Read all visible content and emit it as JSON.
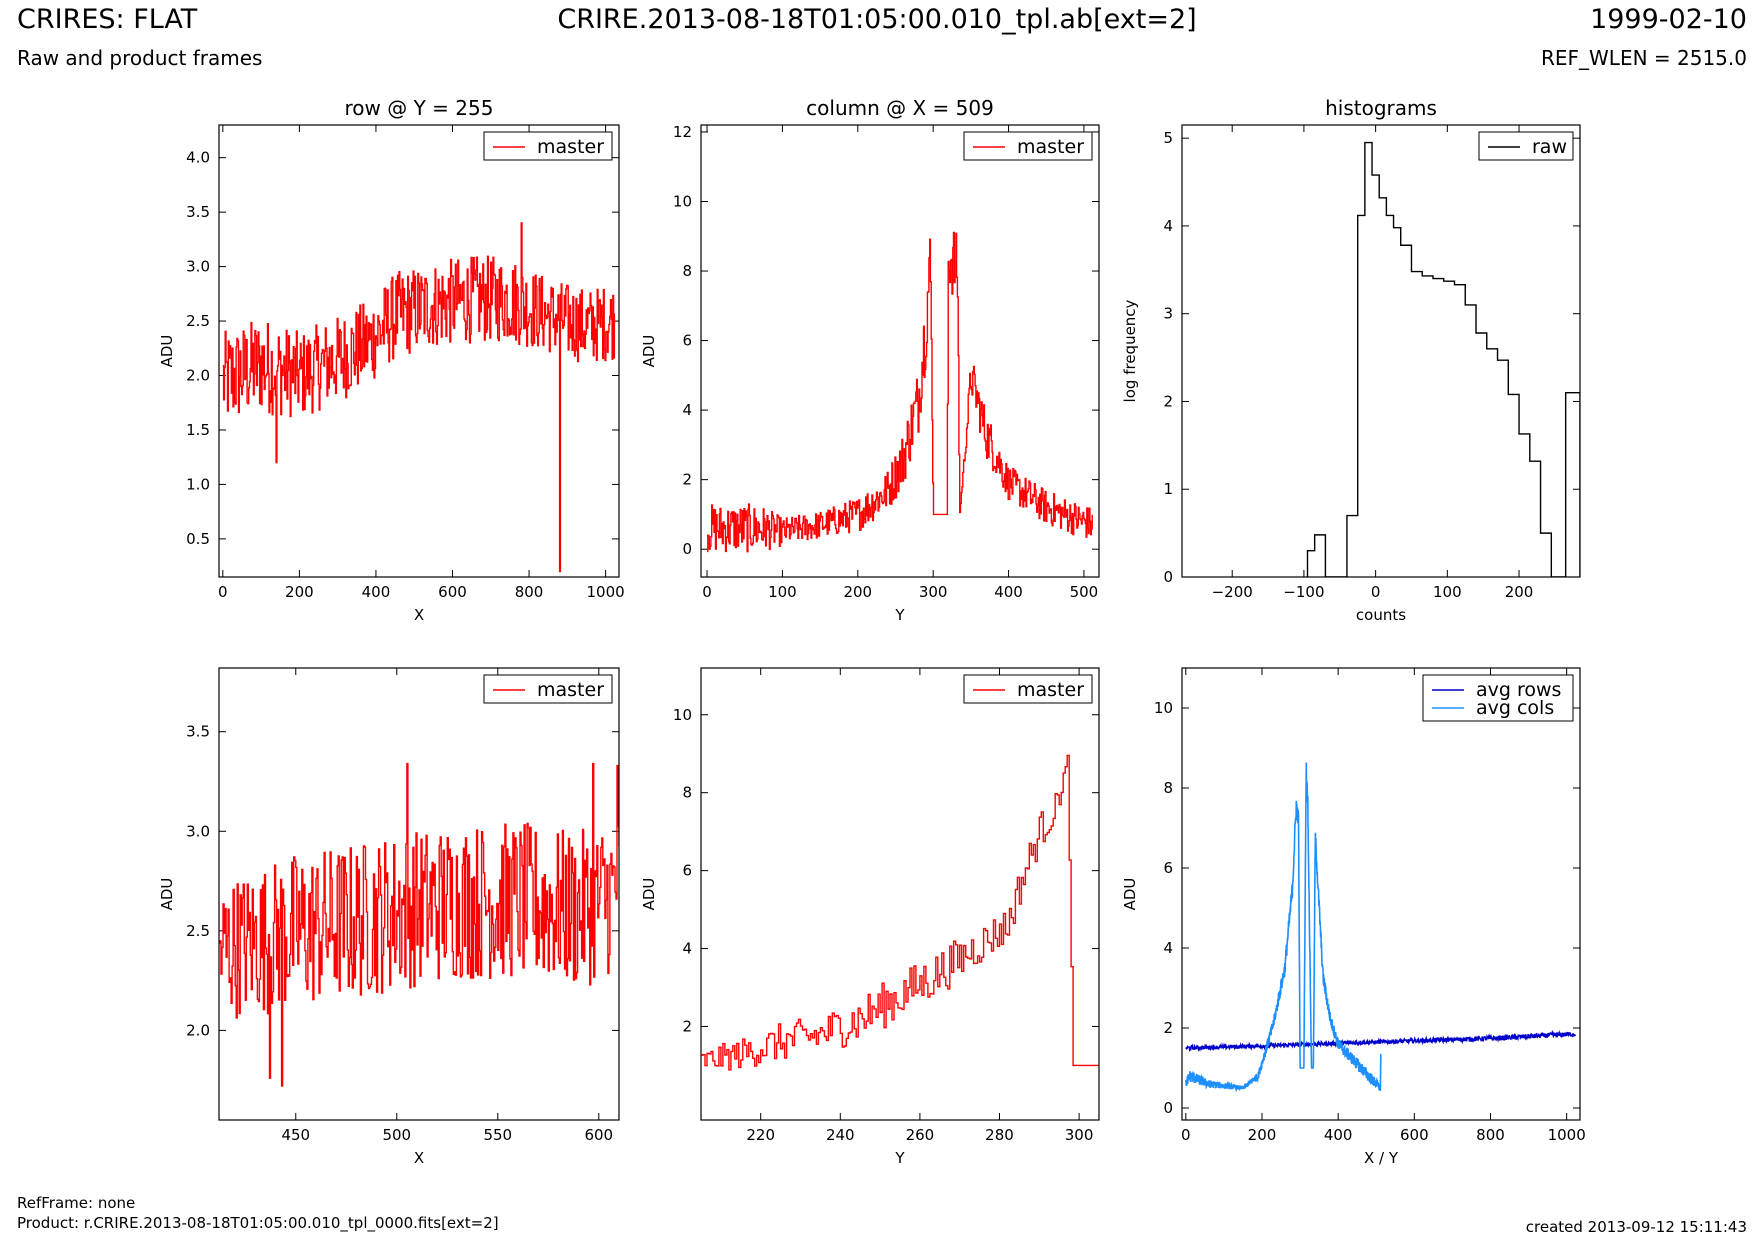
{
  "header": {
    "title": "CRIRES: FLAT",
    "subtitle": "Raw and product frames",
    "file": "CRIRE.2013-08-18T01:05:00.010_tpl.ab[ext=2]",
    "date": "1999-02-10",
    "ref_wlen": "REF_WLEN = 2515.0"
  },
  "footer": {
    "ref_frame": "RefFrame: none",
    "product": "Product: r.CRIRE.2013-08-18T01:05:00.010_tpl_0000.fits[ext=2]",
    "created": "created 2013-09-12 15:11:43"
  },
  "colors": {
    "master": "#ff0000",
    "raw": "#000000",
    "avg_rows": "#0000cc",
    "avg_cols": "#1e8fff"
  },
  "chart_data": [
    {
      "type": "line",
      "title": "row @ Y = 255",
      "xlabel": "X",
      "ylabel": "ADU",
      "xlim": [
        -10,
        1035
      ],
      "ylim": [
        0.15,
        4.3
      ],
      "xticks": [
        0,
        200,
        400,
        600,
        800,
        1000
      ],
      "yticks": [
        0.5,
        1.0,
        1.5,
        2.0,
        2.5,
        3.0,
        3.5,
        4.0
      ],
      "legend_position": "top-right",
      "series": [
        {
          "name": "master",
          "color": "#ff0000",
          "style": "noisy-step",
          "x": [
            0,
            100,
            200,
            300,
            380,
            450,
            550,
            650,
            750,
            850,
            950,
            1023
          ],
          "y": [
            1.95,
            2.1,
            2.0,
            2.15,
            2.3,
            2.55,
            2.65,
            2.7,
            2.7,
            2.55,
            2.45,
            2.5
          ],
          "noise": [
            0.45,
            0.45,
            0.4,
            0.4,
            0.4,
            0.4,
            0.4,
            0.4,
            0.4,
            0.35,
            0.35,
            0.35
          ],
          "spikes": [
            {
              "x": 880,
              "y": 0.2
            },
            {
              "x": 140,
              "y": 1.2
            },
            {
              "x": 780,
              "y": 3.4
            }
          ]
        }
      ]
    },
    {
      "type": "line",
      "title": "column @ X = 509",
      "xlabel": "Y",
      "ylabel": "ADU",
      "xlim": [
        -8,
        520
      ],
      "ylim": [
        -0.8,
        12.2
      ],
      "xticks": [
        0,
        100,
        200,
        300,
        400,
        500
      ],
      "yticks": [
        0,
        2,
        4,
        6,
        8,
        10,
        12
      ],
      "legend_position": "top-right",
      "series": [
        {
          "name": "master",
          "color": "#ff0000",
          "style": "noisy-step",
          "x": [
            0,
            70,
            100,
            150,
            200,
            240,
            260,
            280,
            290,
            296,
            300,
            318,
            320,
            332,
            335,
            350,
            370,
            400,
            450,
            511
          ],
          "y": [
            0.6,
            0.6,
            0.5,
            0.7,
            1.0,
            1.7,
            2.6,
            4.3,
            6.5,
            8.4,
            1.0,
            1.0,
            8.6,
            8.0,
            1.0,
            5.0,
            3.3,
            1.9,
            1.2,
            0.7
          ],
          "noise": [
            0.7,
            0.7,
            0.4,
            0.4,
            0.5,
            0.6,
            0.8,
            1.0,
            1.2,
            1.0,
            0.0,
            0.0,
            1.2,
            1.0,
            0.0,
            0.6,
            0.7,
            0.5,
            0.5,
            0.5
          ]
        }
      ]
    },
    {
      "type": "bar",
      "style": "step-histogram",
      "title": "histograms",
      "xlabel": "counts",
      "ylabel": "log frequency",
      "xlim": [
        -270,
        285
      ],
      "ylim": [
        0,
        5.15
      ],
      "xticks": [
        -200,
        -100,
        0,
        100,
        200
      ],
      "yticks": [
        0,
        1,
        2,
        3,
        4,
        5
      ],
      "legend_position": "top-right",
      "series": [
        {
          "name": "raw",
          "color": "#000000",
          "bin_edges": [
            -95,
            -85,
            -70,
            -40,
            -25,
            -15,
            -5,
            5,
            15,
            25,
            35,
            50,
            65,
            80,
            95,
            110,
            125,
            140,
            155,
            170,
            185,
            200,
            215,
            230,
            245,
            260,
            265,
            275,
            285
          ],
          "values": [
            0.3,
            0.48,
            0,
            0.7,
            4.12,
            4.95,
            4.58,
            4.32,
            4.12,
            3.98,
            3.78,
            3.48,
            3.43,
            3.4,
            3.37,
            3.33,
            3.1,
            2.78,
            2.6,
            2.47,
            2.08,
            1.63,
            1.32,
            0.5,
            0,
            0,
            2.1,
            2.1
          ]
        }
      ]
    },
    {
      "type": "line",
      "xlabel": "X",
      "ylabel": "ADU",
      "xlim": [
        412,
        610
      ],
      "ylim": [
        1.55,
        3.82
      ],
      "xticks": [
        450,
        500,
        550,
        600
      ],
      "yticks": [
        2.0,
        2.5,
        3.0,
        3.5
      ],
      "legend_position": "top-right",
      "series": [
        {
          "name": "master",
          "color": "#ff0000",
          "style": "noisy-step",
          "x": [
            412,
            450,
            480,
            500,
            530,
            560,
            590,
            610
          ],
          "y": [
            2.4,
            2.5,
            2.55,
            2.6,
            2.65,
            2.65,
            2.6,
            2.7
          ],
          "noise": [
            0.35,
            0.4,
            0.4,
            0.4,
            0.4,
            0.4,
            0.4,
            0.4
          ],
          "spikes": [
            {
              "x": 443,
              "y": 1.72
            },
            {
              "x": 437,
              "y": 1.76
            },
            {
              "x": 505,
              "y": 3.34
            },
            {
              "x": 597,
              "y": 3.34
            },
            {
              "x": 609,
              "y": 3.33
            }
          ]
        }
      ]
    },
    {
      "type": "line",
      "xlabel": "Y",
      "ylabel": "ADU",
      "xlim": [
        205,
        305
      ],
      "ylim": [
        -0.4,
        11.2
      ],
      "xticks": [
        220,
        240,
        260,
        280,
        300
      ],
      "yticks": [
        2,
        4,
        6,
        8,
        10
      ],
      "legend_position": "top-right",
      "series": [
        {
          "name": "master",
          "color": "#ff0000",
          "style": "noisy-step",
          "x": [
            205,
            215,
            225,
            235,
            245,
            255,
            265,
            275,
            282,
            285,
            290,
            294,
            297,
            298.5,
            305
          ],
          "y": [
            1.1,
            1.3,
            1.6,
            1.8,
            2.2,
            2.8,
            3.4,
            4.1,
            4.6,
            5.6,
            7.0,
            7.6,
            8.8,
            1.0,
            1.0
          ],
          "noise": [
            0.3,
            0.4,
            0.5,
            0.5,
            0.6,
            0.6,
            0.6,
            0.5,
            0.5,
            0.5,
            0.5,
            0.4,
            0.2,
            0.0,
            0.0
          ]
        }
      ]
    },
    {
      "type": "line",
      "xlabel": "X / Y",
      "ylabel": "ADU",
      "xlim": [
        -10,
        1035
      ],
      "ylim": [
        -0.3,
        11.0
      ],
      "xticks": [
        0,
        200,
        400,
        600,
        800,
        1000
      ],
      "yticks": [
        0,
        2,
        4,
        6,
        8,
        10
      ],
      "legend_position": "top-right",
      "series": [
        {
          "name": "avg rows",
          "color": "#0000cc",
          "style": "smooth",
          "x": [
            0,
            200,
            400,
            600,
            800,
            1023
          ],
          "y": [
            1.5,
            1.55,
            1.62,
            1.68,
            1.74,
            1.85
          ],
          "noise": [
            0.05,
            0.05,
            0.05,
            0.05,
            0.06,
            0.06
          ]
        },
        {
          "name": "avg cols",
          "color": "#1e8fff",
          "style": "smooth",
          "x": [
            0,
            10,
            60,
            150,
            190,
            230,
            260,
            280,
            290,
            296,
            300,
            310,
            316,
            320,
            330,
            335,
            340,
            360,
            380,
            400,
            440,
            480,
            511,
            512
          ],
          "y": [
            0.6,
            0.8,
            0.6,
            0.5,
            0.8,
            2.1,
            3.5,
            5.5,
            7.6,
            7.2,
            1.0,
            1.0,
            8.5,
            7.8,
            1.0,
            1.0,
            6.8,
            3.3,
            2.2,
            1.6,
            1.2,
            0.8,
            0.5,
            1.35
          ],
          "noise": [
            0.1,
            0.15,
            0.1,
            0.05,
            0.1,
            0.15,
            0.2,
            0.25,
            0.25,
            0.2,
            0.0,
            0.0,
            0.25,
            0.25,
            0.0,
            0.0,
            0.2,
            0.2,
            0.15,
            0.15,
            0.15,
            0.15,
            0.1,
            0.0
          ]
        }
      ]
    }
  ]
}
